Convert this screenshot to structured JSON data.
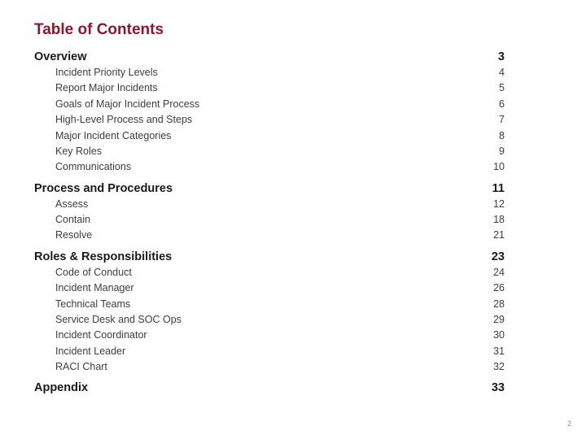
{
  "title": "Table of Contents",
  "title_color": "#8a1830",
  "footer_page_number": "2",
  "sections": [
    {
      "label": "Overview",
      "page": "3",
      "items": [
        {
          "label": "Incident Priority Levels",
          "page": "4"
        },
        {
          "label": "Report Major Incidents",
          "page": "5"
        },
        {
          "label": "Goals of Major Incident Process",
          "page": "6"
        },
        {
          "label": "High-Level Process and Steps",
          "page": "7"
        },
        {
          "label": "Major Incident Categories",
          "page": "8"
        },
        {
          "label": "Key Roles",
          "page": "9"
        },
        {
          "label": "Communications",
          "page": "10"
        }
      ]
    },
    {
      "label": "Process and Procedures",
      "page": "11",
      "items": [
        {
          "label": "Assess",
          "page": "12"
        },
        {
          "label": "Contain",
          "page": "18"
        },
        {
          "label": "Resolve",
          "page": "21"
        }
      ]
    },
    {
      "label": "Roles & Responsibilities",
      "page": "23",
      "items": [
        {
          "label": "Code of Conduct",
          "page": "24"
        },
        {
          "label": "Incident Manager",
          "page": "26"
        },
        {
          "label": "Technical Teams",
          "page": "28"
        },
        {
          "label": "Service Desk and SOC Ops",
          "page": "29"
        },
        {
          "label": "Incident Coordinator",
          "page": "30"
        },
        {
          "label": "Incident Leader",
          "page": "31"
        },
        {
          "label": "RACI Chart",
          "page": "32"
        }
      ]
    },
    {
      "label": "Appendix",
      "page": "33",
      "items": []
    }
  ]
}
